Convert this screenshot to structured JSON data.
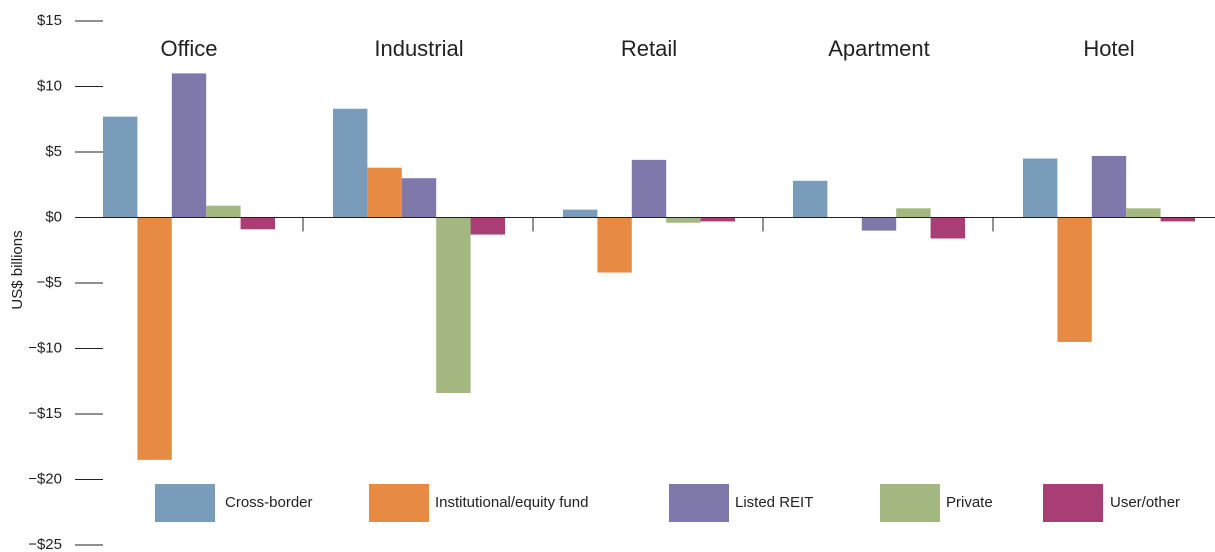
{
  "chart_data": {
    "type": "bar",
    "ylabel": "US$ billions",
    "categories": [
      "Office",
      "Industrial",
      "Retail",
      "Apartment",
      "Hotel"
    ],
    "series": [
      {
        "name": "Cross-border",
        "color": "#7a9cbb",
        "values": [
          7.7,
          8.3,
          0.6,
          2.8,
          4.5
        ]
      },
      {
        "name": "Institutional/equity fund",
        "color": "#e68a44",
        "values": [
          -18.5,
          3.8,
          -4.2,
          null,
          -9.5
        ]
      },
      {
        "name": "Listed REIT",
        "color": "#7e78ab",
        "values": [
          11,
          3.0,
          4.4,
          -1.0,
          4.7
        ]
      },
      {
        "name": "Private",
        "color": "#a3b780",
        "values": [
          0.9,
          -13.4,
          -0.4,
          0.7,
          0.7
        ]
      },
      {
        "name": "User/other",
        "color": "#a83e73",
        "values": [
          -0.9,
          -1.3,
          -0.3,
          -1.6,
          -0.3
        ]
      }
    ],
    "ylim": [
      -25,
      15
    ],
    "yticks": [
      {
        "value": 15,
        "label": "$15"
      },
      {
        "value": 10,
        "label": "$10"
      },
      {
        "value": 5,
        "label": "$5"
      },
      {
        "value": 0,
        "label": "$0"
      },
      {
        "value": -5,
        "label": "−$5"
      },
      {
        "value": -10,
        "label": "−$10"
      },
      {
        "value": -15,
        "label": "−$15"
      },
      {
        "value": -20,
        "label": "−$20"
      },
      {
        "value": -25,
        "label": "−$25"
      }
    ],
    "legend": "bottom"
  }
}
